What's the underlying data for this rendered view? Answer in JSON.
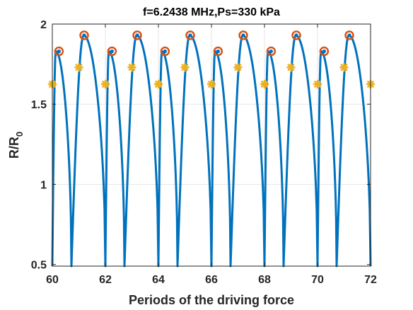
{
  "chart_data": {
    "type": "line",
    "title": "f=6.2438 MHz,Ps=330 kPa",
    "xlabel": "Periods of the driving force",
    "ylabel_main": "R/R",
    "ylabel_sub": "0",
    "xlim": [
      60,
      72
    ],
    "ylim": [
      0.49,
      2.0
    ],
    "xticks": [
      60,
      62,
      64,
      66,
      68,
      70,
      72
    ],
    "xtick_labels": [
      "60",
      "62",
      "64",
      "66",
      "68",
      "70",
      "72"
    ],
    "yticks": [
      0.5,
      1,
      1.5,
      2
    ],
    "ytick_labels": [
      "0.5",
      "1",
      "1.5",
      "2"
    ],
    "grid": true,
    "series": [
      {
        "kind": "curve",
        "color": "#0072BD",
        "period": 2,
        "phase_start": 60,
        "cycles": [
          {
            "start": 0.0,
            "peak_t": 0.13,
            "peak": 1.83,
            "end": 0.72,
            "min": 0.49
          },
          {
            "start": 0.72,
            "peak_t": 1.18,
            "peak": 1.93,
            "end": 2.0,
            "min": 0.49
          }
        ],
        "line_width": 3
      },
      {
        "kind": "markers",
        "marker": "circle",
        "color": "#D95319",
        "points": [
          [
            60.25,
            1.83
          ],
          [
            61.2,
            1.93
          ],
          [
            62.25,
            1.83
          ],
          [
            63.2,
            1.93
          ],
          [
            64.25,
            1.83
          ],
          [
            65.2,
            1.93
          ],
          [
            66.25,
            1.83
          ],
          [
            67.2,
            1.93
          ],
          [
            68.25,
            1.83
          ],
          [
            69.2,
            1.93
          ],
          [
            70.25,
            1.83
          ],
          [
            71.2,
            1.93
          ]
        ]
      },
      {
        "kind": "markers",
        "marker": "dot",
        "color": "#0072BD",
        "points": [
          [
            60.25,
            1.83
          ],
          [
            61.2,
            1.93
          ],
          [
            62.25,
            1.83
          ],
          [
            63.2,
            1.93
          ],
          [
            64.25,
            1.83
          ],
          [
            65.2,
            1.93
          ],
          [
            66.25,
            1.83
          ],
          [
            67.2,
            1.93
          ],
          [
            68.25,
            1.83
          ],
          [
            69.2,
            1.93
          ],
          [
            70.25,
            1.83
          ],
          [
            71.2,
            1.93
          ]
        ]
      },
      {
        "kind": "markers",
        "marker": "star",
        "color": "#EDB120",
        "points": [
          [
            60,
            1.625
          ],
          [
            61,
            1.73
          ],
          [
            62,
            1.625
          ],
          [
            63,
            1.73
          ],
          [
            64,
            1.625
          ],
          [
            65,
            1.73
          ],
          [
            66,
            1.625
          ],
          [
            67,
            1.73
          ],
          [
            68,
            1.625
          ],
          [
            69,
            1.73
          ],
          [
            70,
            1.625
          ],
          [
            71,
            1.73
          ],
          [
            72,
            1.625
          ]
        ]
      }
    ]
  }
}
